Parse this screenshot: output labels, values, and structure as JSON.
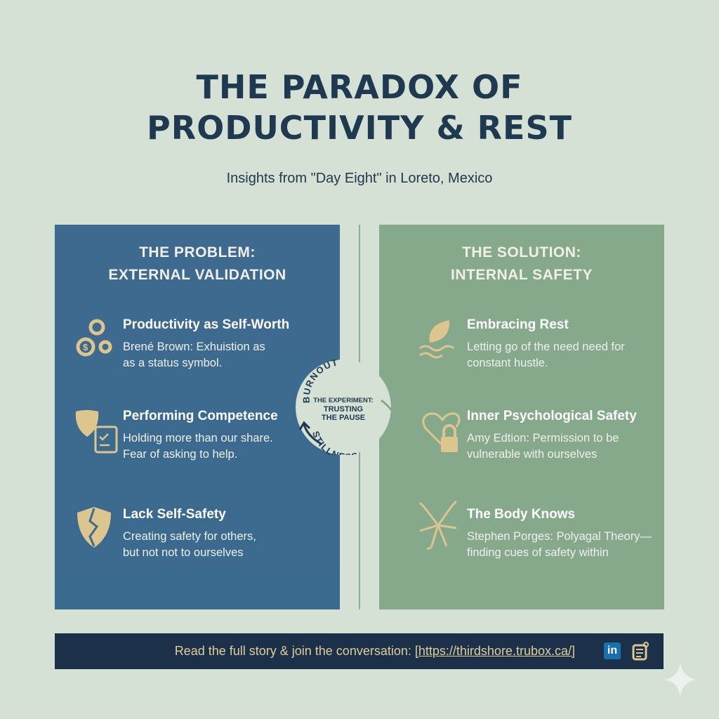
{
  "header": {
    "title_line1": "THE PARADOX OF",
    "title_line2": "PRODUCTIVITY & REST",
    "subtitle": "Insights from \"Day Eight\" in Loreto, Mexico"
  },
  "problem": {
    "heading_line1": "THE PROBLEM:",
    "heading_line2": "EXTERNAL VALIDATION",
    "items": [
      {
        "title": "Productivity as Self-Worth",
        "desc1": "Brené Brown: Exhuistion as",
        "desc2": "as a status symbol.",
        "icon": "gears-dollar-icon"
      },
      {
        "title": "Performing Competence",
        "desc1": "Holding more than our share.",
        "desc2": "Fear of asking to help.",
        "icon": "mask-clipboard-icon"
      },
      {
        "title": "Lack Self-Safety",
        "desc1": "Creating safety for others,",
        "desc2": "but not not to ourselves",
        "icon": "broken-shield-icon"
      }
    ]
  },
  "solution": {
    "heading_line1": "THE SOLUTION:",
    "heading_line2": "INTERNAL SAFETY",
    "items": [
      {
        "title": "Embracing Rest",
        "desc1": "Letting go of the need need for",
        "desc2": "constant hustle.",
        "icon": "leaf-water-icon"
      },
      {
        "title": "Inner Psychological Safety",
        "desc1": "Amy Edtion: Permission to be",
        "desc2": "vulnerable with ourselves",
        "icon": "heart-lock-icon"
      },
      {
        "title": "The Body Knows",
        "desc1": "Stephen Porges: Polyagal Theory—",
        "desc2": "finding cues of safety within",
        "icon": "nerve-icon"
      }
    ]
  },
  "cycle": {
    "top": "BURNOUT",
    "bottom": "STILLNESS",
    "center_line1": "THE EXPERIMENT:",
    "center_line2": "TRUSTING",
    "center_line3": "THE PAUSE"
  },
  "footer": {
    "text": "Read the full story & join the conversation: ",
    "link": "[https://thirdshore.trubox.ca/]",
    "icons": [
      "linkedin-icon",
      "blog-icon"
    ]
  },
  "colors": {
    "background": "#d5e1d5",
    "title": "#1f3a50",
    "problem_panel": "#3d6a8f",
    "solution_panel": "#86a98b",
    "accent_gold": "#dcc68e",
    "footer": "#1a3149"
  }
}
